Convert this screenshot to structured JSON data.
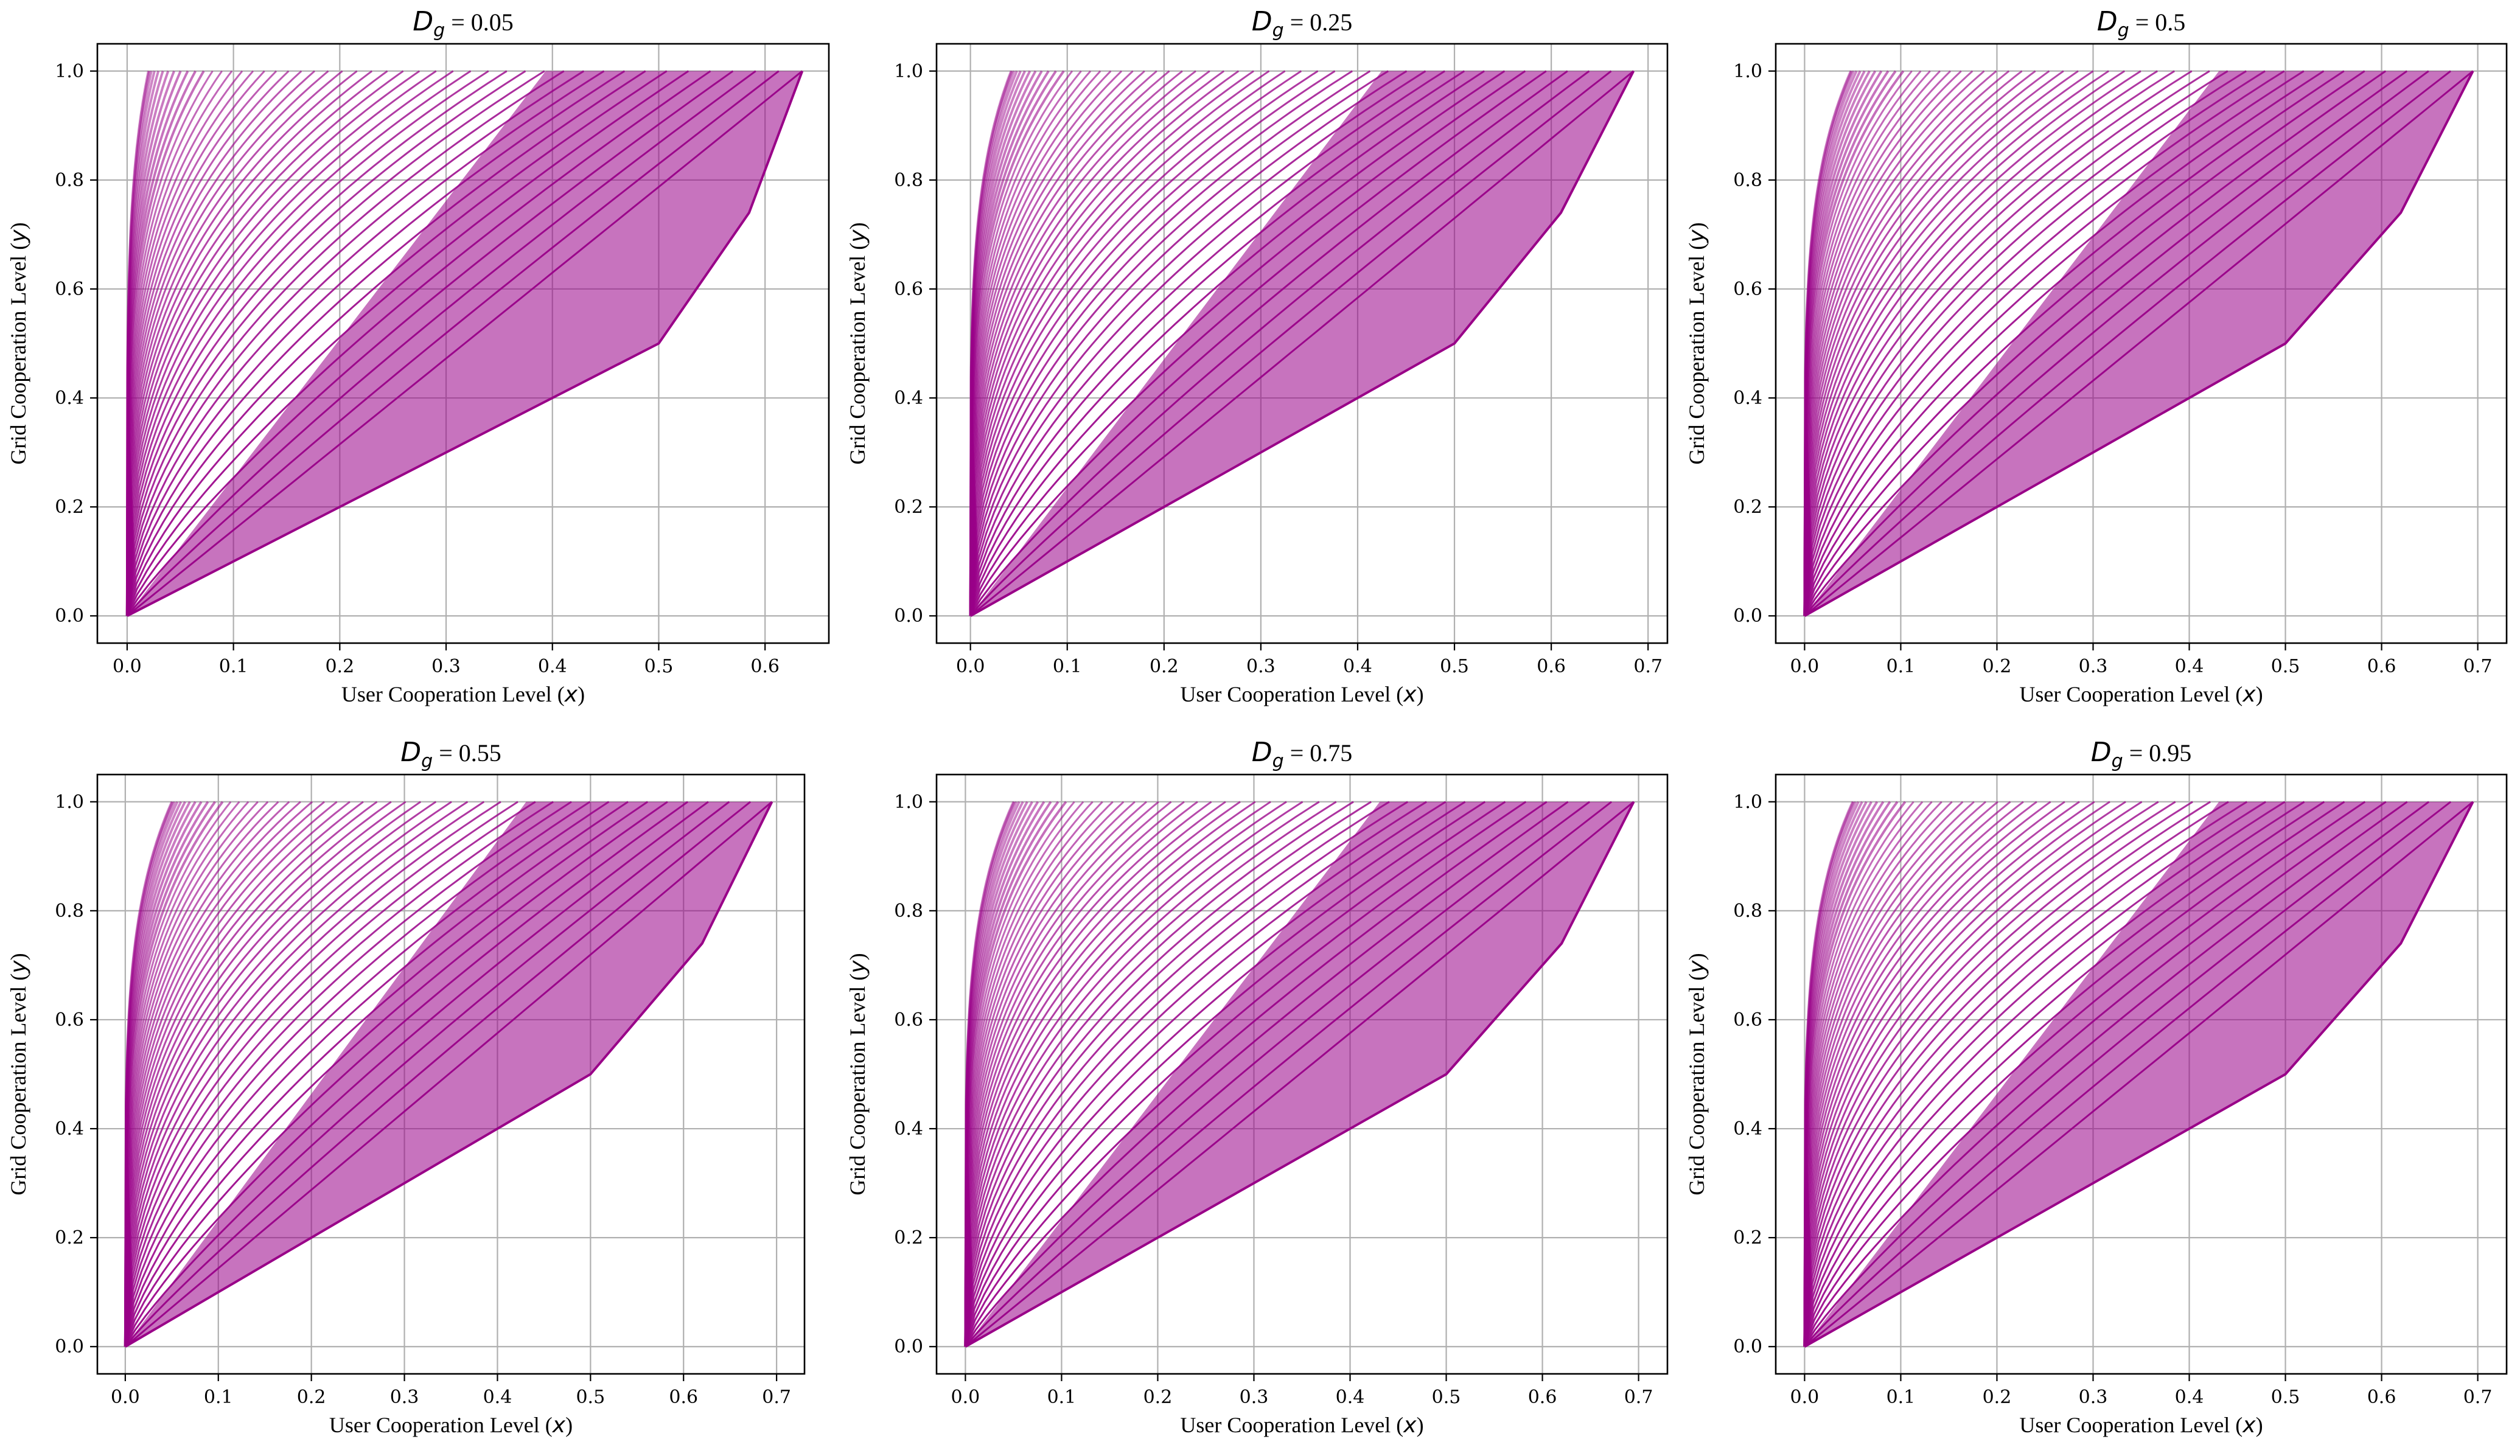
{
  "chart_data": [
    {
      "type": "line",
      "title": {
        "symbol": "D",
        "subscript": "g",
        "text": " = 0.05"
      },
      "dg": 0.05,
      "xlabel": {
        "text": "User Cooperation Level (",
        "var": "x",
        "close": ")"
      },
      "ylabel": {
        "text": "Grid Cooperation Level (",
        "var": "y",
        "close": ")"
      },
      "xlim": [
        -0.028,
        0.66
      ],
      "ylim": [
        -0.05,
        1.05
      ],
      "xticks": [
        0.0,
        0.1,
        0.2,
        0.3,
        0.4,
        0.5,
        0.6
      ],
      "xtick_labels": [
        "0.0",
        "0.1",
        "0.2",
        "0.3",
        "0.4",
        "0.5",
        "0.6"
      ],
      "yticks": [
        0.0,
        0.2,
        0.4,
        0.6,
        0.8,
        1.0
      ],
      "ytick_labels": [
        "0.0",
        "0.2",
        "0.4",
        "0.6",
        "0.8",
        "1.0"
      ],
      "grid": true,
      "envelope": [
        [
          0.0,
          0.0
        ],
        [
          0.5,
          0.5
        ],
        [
          0.585,
          0.74
        ],
        [
          0.635,
          1.0
        ]
      ],
      "series": {
        "count": 48,
        "x_at_top_min": 0.02,
        "x_at_top_max": 0.635,
        "color": "#990088"
      }
    },
    {
      "type": "line",
      "title": {
        "symbol": "D",
        "subscript": "g",
        "text": " = 0.25"
      },
      "dg": 0.25,
      "xlabel": {
        "text": "User Cooperation Level (",
        "var": "x",
        "close": ")"
      },
      "ylabel": {
        "text": "Grid Cooperation Level (",
        "var": "y",
        "close": ")"
      },
      "xlim": [
        -0.035,
        0.72
      ],
      "ylim": [
        -0.05,
        1.05
      ],
      "xticks": [
        0.0,
        0.1,
        0.2,
        0.3,
        0.4,
        0.5,
        0.6,
        0.7
      ],
      "xtick_labels": [
        "0.0",
        "0.1",
        "0.2",
        "0.3",
        "0.4",
        "0.5",
        "0.6",
        "0.7"
      ],
      "yticks": [
        0.0,
        0.2,
        0.4,
        0.6,
        0.8,
        1.0
      ],
      "ytick_labels": [
        "0.0",
        "0.2",
        "0.4",
        "0.6",
        "0.8",
        "1.0"
      ],
      "grid": true,
      "envelope": [
        [
          0.0,
          0.0
        ],
        [
          0.5,
          0.5
        ],
        [
          0.61,
          0.74
        ],
        [
          0.685,
          1.0
        ]
      ],
      "series": {
        "count": 48,
        "x_at_top_min": 0.042,
        "x_at_top_max": 0.685,
        "color": "#990088"
      }
    },
    {
      "type": "line",
      "title": {
        "symbol": "D",
        "subscript": "g",
        "text": " = 0.5"
      },
      "dg": 0.5,
      "xlabel": {
        "text": "User Cooperation Level (",
        "var": "x",
        "close": ")"
      },
      "ylabel": {
        "text": "Grid Cooperation Level (",
        "var": "y",
        "close": ")"
      },
      "xlim": [
        -0.03,
        0.73
      ],
      "ylim": [
        -0.05,
        1.05
      ],
      "xticks": [
        0.0,
        0.1,
        0.2,
        0.3,
        0.4,
        0.5,
        0.6,
        0.7
      ],
      "xtick_labels": [
        "0.0",
        "0.1",
        "0.2",
        "0.3",
        "0.4",
        "0.5",
        "0.6",
        "0.7"
      ],
      "yticks": [
        0.0,
        0.2,
        0.4,
        0.6,
        0.8,
        1.0
      ],
      "ytick_labels": [
        "0.0",
        "0.2",
        "0.4",
        "0.6",
        "0.8",
        "1.0"
      ],
      "grid": true,
      "envelope": [
        [
          0.0,
          0.0
        ],
        [
          0.5,
          0.5
        ],
        [
          0.62,
          0.74
        ],
        [
          0.695,
          1.0
        ]
      ],
      "series": {
        "count": 48,
        "x_at_top_min": 0.048,
        "x_at_top_max": 0.695,
        "color": "#990088"
      }
    },
    {
      "type": "line",
      "title": {
        "symbol": "D",
        "subscript": "g",
        "text": " = 0.55"
      },
      "dg": 0.55,
      "xlabel": {
        "text": "User Cooperation Level (",
        "var": "x",
        "close": ")"
      },
      "ylabel": {
        "text": "Grid Cooperation Level (",
        "var": "y",
        "close": ")"
      },
      "xlim": [
        -0.03,
        0.73
      ],
      "ylim": [
        -0.05,
        1.05
      ],
      "xticks": [
        0.0,
        0.1,
        0.2,
        0.3,
        0.4,
        0.5,
        0.6,
        0.7
      ],
      "xtick_labels": [
        "0.0",
        "0.1",
        "0.2",
        "0.3",
        "0.4",
        "0.5",
        "0.6",
        "0.7"
      ],
      "yticks": [
        0.0,
        0.2,
        0.4,
        0.6,
        0.8,
        1.0
      ],
      "ytick_labels": [
        "0.0",
        "0.2",
        "0.4",
        "0.6",
        "0.8",
        "1.0"
      ],
      "grid": true,
      "envelope": [
        [
          0.0,
          0.0
        ],
        [
          0.5,
          0.5
        ],
        [
          0.62,
          0.74
        ],
        [
          0.695,
          1.0
        ]
      ],
      "series": {
        "count": 48,
        "x_at_top_min": 0.05,
        "x_at_top_max": 0.695,
        "color": "#990088"
      }
    },
    {
      "type": "line",
      "title": {
        "symbol": "D",
        "subscript": "g",
        "text": " = 0.75"
      },
      "dg": 0.75,
      "xlabel": {
        "text": "User Cooperation Level (",
        "var": "x",
        "close": ")"
      },
      "ylabel": {
        "text": "Grid Cooperation Level (",
        "var": "y",
        "close": ")"
      },
      "xlim": [
        -0.03,
        0.73
      ],
      "ylim": [
        -0.05,
        1.05
      ],
      "xticks": [
        0.0,
        0.1,
        0.2,
        0.3,
        0.4,
        0.5,
        0.6,
        0.7
      ],
      "xtick_labels": [
        "0.0",
        "0.1",
        "0.2",
        "0.3",
        "0.4",
        "0.5",
        "0.6",
        "0.7"
      ],
      "yticks": [
        0.0,
        0.2,
        0.4,
        0.6,
        0.8,
        1.0
      ],
      "ytick_labels": [
        "0.0",
        "0.2",
        "0.4",
        "0.6",
        "0.8",
        "1.0"
      ],
      "grid": true,
      "envelope": [
        [
          0.0,
          0.0
        ],
        [
          0.5,
          0.5
        ],
        [
          0.62,
          0.74
        ],
        [
          0.695,
          1.0
        ]
      ],
      "series": {
        "count": 48,
        "x_at_top_min": 0.05,
        "x_at_top_max": 0.695,
        "color": "#990088"
      }
    },
    {
      "type": "line",
      "title": {
        "symbol": "D",
        "subscript": "g",
        "text": " = 0.95"
      },
      "dg": 0.95,
      "xlabel": {
        "text": "User Cooperation Level (",
        "var": "x",
        "close": ")"
      },
      "ylabel": {
        "text": "Grid Cooperation Level (",
        "var": "y",
        "close": ")"
      },
      "xlim": [
        -0.03,
        0.73
      ],
      "ylim": [
        -0.05,
        1.05
      ],
      "xticks": [
        0.0,
        0.1,
        0.2,
        0.3,
        0.4,
        0.5,
        0.6,
        0.7
      ],
      "xtick_labels": [
        "0.0",
        "0.1",
        "0.2",
        "0.3",
        "0.4",
        "0.5",
        "0.6",
        "0.7"
      ],
      "yticks": [
        0.0,
        0.2,
        0.4,
        0.6,
        0.8,
        1.0
      ],
      "ytick_labels": [
        "0.0",
        "0.2",
        "0.4",
        "0.6",
        "0.8",
        "1.0"
      ],
      "grid": true,
      "envelope": [
        [
          0.0,
          0.0
        ],
        [
          0.5,
          0.5
        ],
        [
          0.62,
          0.74
        ],
        [
          0.695,
          1.0
        ]
      ],
      "series": {
        "count": 48,
        "x_at_top_min": 0.05,
        "x_at_top_max": 0.695,
        "color": "#990088"
      }
    }
  ]
}
